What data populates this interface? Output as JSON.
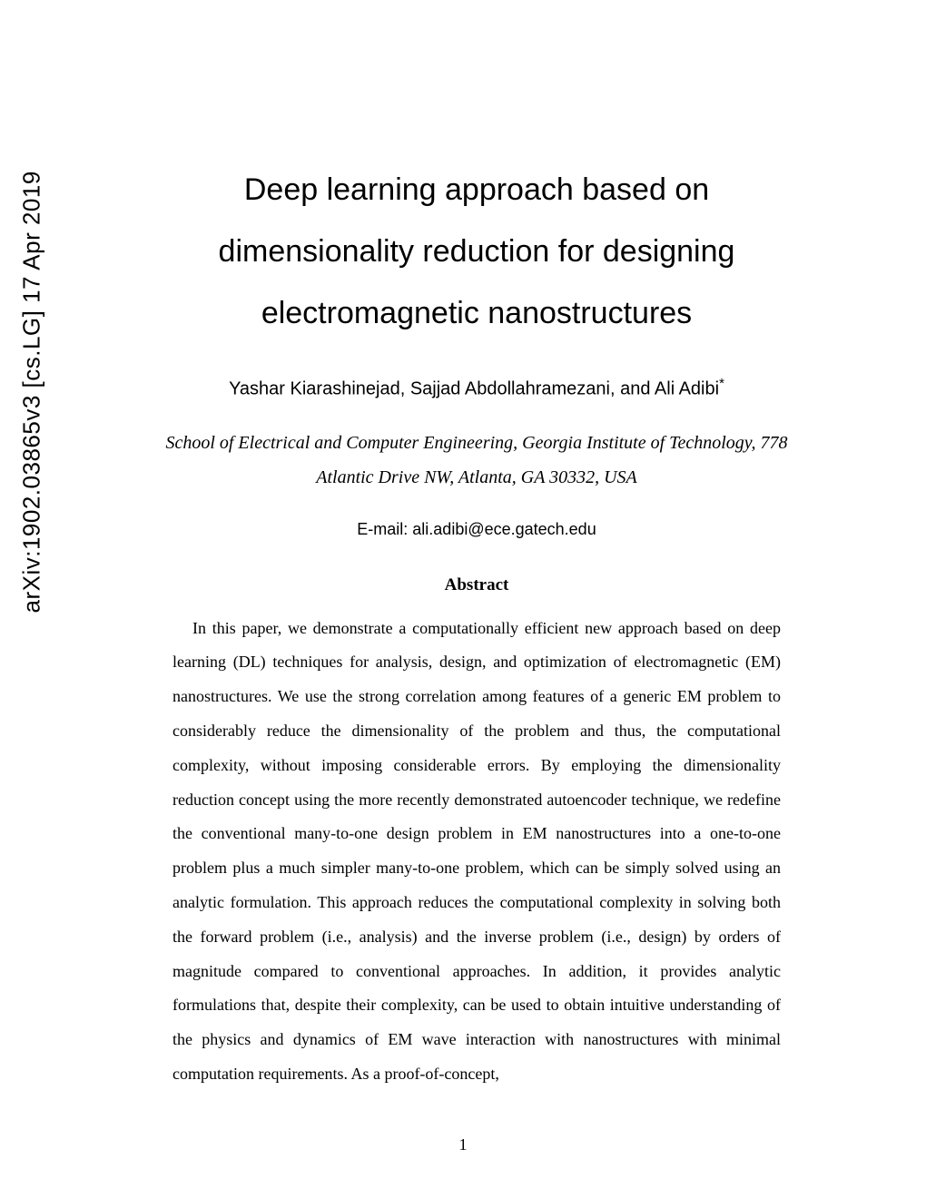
{
  "arxiv": {
    "identifier": "arXiv:1902.03865v3  [cs.LG]  17 Apr 2019"
  },
  "paper": {
    "title": "Deep learning approach based on dimensionality reduction for designing electromagnetic nanostructures",
    "authors": "Yashar Kiarashinejad, Sajjad Abdollahramezani, and Ali Adibi",
    "authors_marker": "*",
    "affiliation": "School of Electrical and Computer Engineering, Georgia Institute of Technology, 778 Atlantic Drive NW, Atlanta, GA 30332, USA",
    "email": "E-mail: ali.adibi@ece.gatech.edu",
    "abstract_heading": "Abstract",
    "abstract_body": "In this paper, we demonstrate a computationally efficient new approach based on deep learning (DL) techniques for analysis, design, and optimization of electromagnetic (EM) nanostructures. We use the strong correlation among features of a generic EM problem to considerably reduce the dimensionality of the problem and thus, the computational complexity, without imposing considerable errors. By employing the dimensionality reduction concept using the more recently demonstrated autoencoder technique, we redefine the conventional many-to-one design problem in EM nanostructures into a one-to-one problem plus a much simpler many-to-one problem, which can be simply solved using an analytic formulation. This approach reduces the computational complexity in solving both the forward problem (i.e., analysis) and the inverse problem (i.e., design) by orders of magnitude compared to conventional approaches. In addition, it provides analytic formulations that, despite their complexity, can be used to obtain intuitive understanding of the physics and dynamics of EM wave interaction with nanostructures with minimal computation requirements. As a proof-of-concept,"
  },
  "page": {
    "number": "1"
  }
}
